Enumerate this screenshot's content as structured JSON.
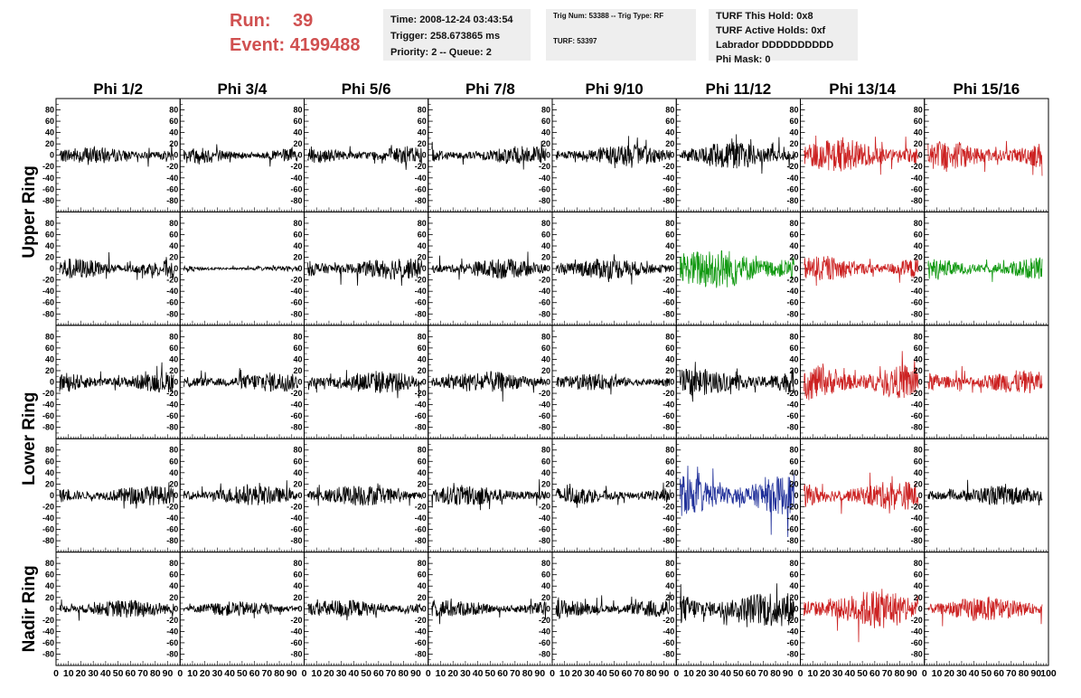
{
  "header": {
    "run_label": "Run:",
    "run_value": "39",
    "event_label": "Event:",
    "event_value": "4199488",
    "time": "Time: 2008-12-24 03:43:54",
    "trigger": "Trigger: 258.673865 ms",
    "priority": "Priority: 2 -- Queue: 2",
    "trig_num": "Trig Num: 53388 -- Trig Type: RF",
    "turf": "TURF: 53397",
    "turf_this_hold": "TURF This Hold: 0x8",
    "turf_active_holds": "TURF Active Holds: 0xf",
    "labrador": "Labrador DDDDDDDDDD",
    "phi_mask": "Phi Mask: 0"
  },
  "chart_data": {
    "type": "line",
    "columns": [
      "Phi 1/2",
      "Phi 3/4",
      "Phi 5/6",
      "Phi 7/8",
      "Phi 9/10",
      "Phi 11/12",
      "Phi 13/14",
      "Phi 15/16"
    ],
    "row_labels": [
      {
        "text": "Upper Ring",
        "rows": [
          0,
          1
        ]
      },
      {
        "text": "Lower Ring",
        "rows": [
          2,
          3
        ]
      },
      {
        "text": "Nadir Ring",
        "rows": [
          4
        ]
      }
    ],
    "ylim": [
      -100,
      100
    ],
    "yticks": [
      -80,
      -60,
      -40,
      -20,
      0,
      20,
      40,
      60,
      80
    ],
    "xlim": [
      0,
      100
    ],
    "xtick_labels": [
      "0",
      "10",
      "20",
      "30",
      "40",
      "50",
      "60",
      "70",
      "80",
      "90",
      "100"
    ],
    "panels": [
      [
        {
          "color": "#000000",
          "amplitude": 14
        },
        {
          "color": "#000000",
          "amplitude": 13
        },
        {
          "color": "#000000",
          "amplitude": 15
        },
        {
          "color": "#000000",
          "amplitude": 15
        },
        {
          "color": "#000000",
          "amplitude": 18
        },
        {
          "color": "#000000",
          "amplitude": 22
        },
        {
          "color": "#cc2222",
          "amplitude": 26
        },
        {
          "color": "#cc2222",
          "amplitude": 24
        }
      ],
      [
        {
          "color": "#000000",
          "amplitude": 17
        },
        {
          "color": "#000000",
          "amplitude": 4
        },
        {
          "color": "#000000",
          "amplitude": 18
        },
        {
          "color": "#000000",
          "amplitude": 16
        },
        {
          "color": "#000000",
          "amplitude": 17
        },
        {
          "color": "#119911",
          "amplitude": 34
        },
        {
          "color": "#cc2222",
          "amplitude": 20
        },
        {
          "color": "#119911",
          "amplitude": 17
        }
      ],
      [
        {
          "color": "#000000",
          "amplitude": 17
        },
        {
          "color": "#000000",
          "amplitude": 16
        },
        {
          "color": "#000000",
          "amplitude": 19
        },
        {
          "color": "#000000",
          "amplitude": 18
        },
        {
          "color": "#000000",
          "amplitude": 13
        },
        {
          "color": "#000000",
          "amplitude": 22
        },
        {
          "color": "#cc2222",
          "amplitude": 30
        },
        {
          "color": "#cc2222",
          "amplitude": 19
        }
      ],
      [
        {
          "color": "#000000",
          "amplitude": 16
        },
        {
          "color": "#000000",
          "amplitude": 16
        },
        {
          "color": "#000000",
          "amplitude": 17
        },
        {
          "color": "#000000",
          "amplitude": 17
        },
        {
          "color": "#000000",
          "amplitude": 14
        },
        {
          "color": "#1f2f99",
          "amplitude": 34
        },
        {
          "color": "#cc2222",
          "amplitude": 24
        },
        {
          "color": "#000000",
          "amplitude": 16
        }
      ],
      [
        {
          "color": "#000000",
          "amplitude": 15
        },
        {
          "color": "#000000",
          "amplitude": 12
        },
        {
          "color": "#000000",
          "amplitude": 15
        },
        {
          "color": "#000000",
          "amplitude": 14
        },
        {
          "color": "#000000",
          "amplitude": 16
        },
        {
          "color": "#000000",
          "amplitude": 30
        },
        {
          "color": "#cc2222",
          "amplitude": 32
        },
        {
          "color": "#cc2222",
          "amplitude": 20
        }
      ]
    ]
  }
}
